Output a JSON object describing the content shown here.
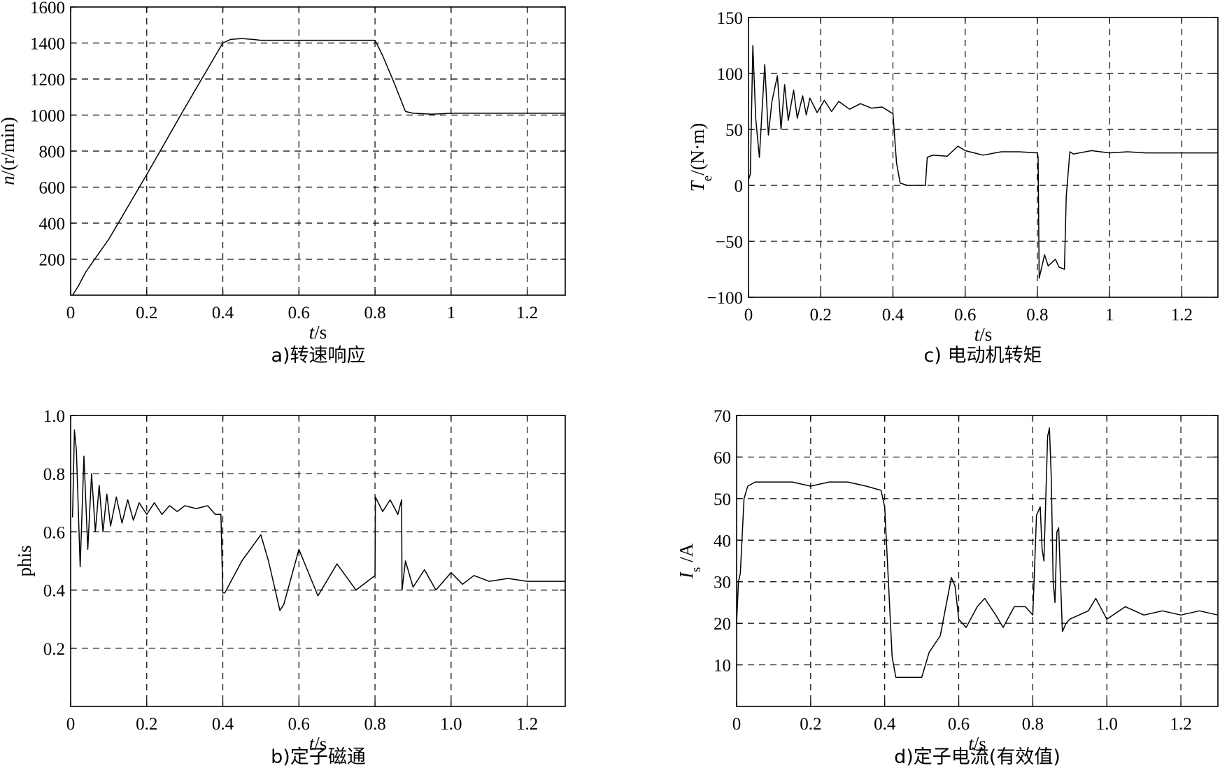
{
  "chart_data": [
    {
      "type": "line",
      "caption": "a)转速响应",
      "title": "",
      "xlabel": {
        "main": "t",
        "rest": "/s"
      },
      "ylabel": {
        "main": "n",
        "sub": "",
        "rest": "/(r/min)"
      },
      "xlim": [
        0,
        1.3
      ],
      "ylim": [
        0,
        1600
      ],
      "xticks": [
        0,
        0.2,
        0.4,
        0.6,
        0.8,
        1,
        1.2
      ],
      "xtick_labels": [
        "0",
        "0.2",
        "0.4",
        "0.6",
        "0.8",
        "1",
        "1.2"
      ],
      "yticks": [
        200,
        400,
        600,
        800,
        1000,
        1200,
        1400,
        1600
      ],
      "ytick_labels": [
        "200",
        "400",
        "600",
        "800",
        "1000",
        "1200",
        "1400",
        "1600"
      ],
      "grid": true,
      "series": [
        {
          "x": [
            0.005,
            0.02,
            0.04,
            0.06,
            0.1,
            0.2,
            0.3,
            0.4,
            0.42,
            0.45,
            0.48,
            0.5,
            0.6,
            0.7,
            0.8,
            0.82,
            0.85,
            0.88,
            0.9,
            0.95,
            1.0,
            1.05,
            1.1,
            1.2,
            1.3
          ],
          "y": [
            0,
            50,
            130,
            190,
            310,
            670,
            1040,
            1400,
            1420,
            1425,
            1420,
            1415,
            1415,
            1415,
            1415,
            1330,
            1180,
            1020,
            1010,
            1005,
            1010,
            1010,
            1010,
            1010,
            1010
          ]
        }
      ]
    },
    {
      "type": "line",
      "caption": "b)定子磁通",
      "title": "",
      "xlabel": {
        "main": "t",
        "rest": "/s"
      },
      "ylabel": {
        "main": "phis",
        "sub": "",
        "rest": ""
      },
      "xlim": [
        0,
        1.3
      ],
      "ylim": [
        0,
        1.0
      ],
      "xticks": [
        0,
        0.2,
        0.4,
        0.6,
        0.8,
        1.0,
        1.2
      ],
      "xtick_labels": [
        "0",
        "0.2",
        "0.4",
        "0.6",
        "0.8",
        "1.0",
        "1.2"
      ],
      "yticks": [
        0.2,
        0.4,
        0.6,
        0.8,
        1.0
      ],
      "ytick_labels": [
        "0.2",
        "0.4",
        "0.6",
        "0.8",
        "1.0"
      ],
      "grid": true,
      "series": [
        {
          "x": [
            0.005,
            0.01,
            0.015,
            0.025,
            0.035,
            0.045,
            0.055,
            0.065,
            0.075,
            0.085,
            0.095,
            0.105,
            0.12,
            0.135,
            0.15,
            0.165,
            0.18,
            0.2,
            0.22,
            0.24,
            0.26,
            0.28,
            0.3,
            0.33,
            0.36,
            0.38,
            0.395,
            0.4,
            0.405,
            0.45,
            0.5,
            0.52,
            0.55,
            0.56,
            0.6,
            0.65,
            0.7,
            0.75,
            0.8,
            0.801,
            0.82,
            0.84,
            0.86,
            0.87,
            0.871,
            0.88,
            0.9,
            0.93,
            0.96,
            1.0,
            1.03,
            1.06,
            1.1,
            1.15,
            1.2,
            1.25,
            1.3
          ],
          "y": [
            0.65,
            0.95,
            0.88,
            0.48,
            0.86,
            0.54,
            0.8,
            0.6,
            0.76,
            0.6,
            0.73,
            0.62,
            0.72,
            0.63,
            0.71,
            0.64,
            0.7,
            0.66,
            0.7,
            0.66,
            0.69,
            0.67,
            0.69,
            0.68,
            0.69,
            0.66,
            0.66,
            0.39,
            0.39,
            0.5,
            0.59,
            0.5,
            0.33,
            0.35,
            0.54,
            0.38,
            0.49,
            0.4,
            0.45,
            0.72,
            0.67,
            0.71,
            0.66,
            0.71,
            0.4,
            0.5,
            0.41,
            0.47,
            0.4,
            0.46,
            0.42,
            0.45,
            0.43,
            0.44,
            0.43,
            0.43,
            0.43
          ]
        }
      ]
    },
    {
      "type": "line",
      "caption": "c) 电动机转矩",
      "title": "",
      "xlabel": {
        "main": "t",
        "rest": "/s"
      },
      "ylabel": {
        "main": "T",
        "sub": "e",
        "rest": "/(N·m)"
      },
      "xlim": [
        0,
        1.3
      ],
      "ylim": [
        -100,
        150
      ],
      "xticks": [
        0,
        0.2,
        0.4,
        0.6,
        0.8,
        1,
        1.2
      ],
      "xtick_labels": [
        "0",
        "0.2",
        "0.4",
        "0.6",
        "0.8",
        "1",
        "1.2"
      ],
      "yticks": [
        -100,
        -50,
        0,
        50,
        100,
        150
      ],
      "ytick_labels": [
        "−100",
        "−50",
        "0",
        "50",
        "100",
        "150"
      ],
      "grid": true,
      "series": [
        {
          "x": [
            0.0,
            0.005,
            0.012,
            0.02,
            0.03,
            0.045,
            0.055,
            0.065,
            0.08,
            0.09,
            0.1,
            0.11,
            0.125,
            0.135,
            0.15,
            0.16,
            0.17,
            0.19,
            0.21,
            0.23,
            0.25,
            0.28,
            0.31,
            0.34,
            0.37,
            0.4,
            0.41,
            0.42,
            0.44,
            0.47,
            0.49,
            0.495,
            0.51,
            0.55,
            0.58,
            0.6,
            0.65,
            0.7,
            0.75,
            0.8,
            0.802,
            0.805,
            0.82,
            0.83,
            0.85,
            0.86,
            0.875,
            0.88,
            0.89,
            0.9,
            0.95,
            1.0,
            1.05,
            1.1,
            1.2,
            1.3
          ],
          "y": [
            5,
            10,
            125,
            60,
            25,
            108,
            45,
            75,
            98,
            50,
            90,
            58,
            85,
            60,
            80,
            63,
            78,
            65,
            76,
            66,
            75,
            68,
            73,
            69,
            70,
            64,
            20,
            2,
            0,
            0,
            0,
            25,
            27,
            26,
            35,
            31,
            27,
            30,
            30,
            29,
            25,
            -83,
            -62,
            -72,
            -66,
            -73,
            -75,
            -10,
            30,
            28,
            31,
            29,
            30,
            29,
            29,
            29
          ]
        }
      ]
    },
    {
      "type": "line",
      "caption": "d)定子电流(有效值)",
      "title": "",
      "xlabel": {
        "main": "t",
        "rest": "/s"
      },
      "ylabel": {
        "main": "I",
        "sub": "s",
        "rest": " /A"
      },
      "xlim": [
        0,
        1.3
      ],
      "ylim": [
        0,
        70
      ],
      "xticks": [
        0,
        0.2,
        0.4,
        0.6,
        0.8,
        1.0,
        1.2
      ],
      "xtick_labels": [
        "0",
        "0.2",
        "0.4",
        "0.6",
        "0.8",
        "1.0",
        "1.2"
      ],
      "yticks": [
        10,
        20,
        30,
        40,
        50,
        60,
        70
      ],
      "ytick_labels": [
        "10",
        "20",
        "30",
        "40",
        "50",
        "60",
        "70"
      ],
      "grid": true,
      "series": [
        {
          "x": [
            0.0,
            0.005,
            0.01,
            0.02,
            0.03,
            0.05,
            0.1,
            0.15,
            0.2,
            0.25,
            0.3,
            0.35,
            0.39,
            0.4,
            0.41,
            0.42,
            0.43,
            0.45,
            0.48,
            0.5,
            0.52,
            0.55,
            0.58,
            0.59,
            0.6,
            0.62,
            0.65,
            0.67,
            0.7,
            0.72,
            0.75,
            0.78,
            0.8,
            0.81,
            0.82,
            0.825,
            0.83,
            0.84,
            0.845,
            0.85,
            0.855,
            0.86,
            0.865,
            0.87,
            0.875,
            0.88,
            0.89,
            0.9,
            0.95,
            0.97,
            1.0,
            1.05,
            1.1,
            1.15,
            1.2,
            1.25,
            1.3
          ],
          "y": [
            20,
            30,
            32,
            50,
            53,
            54,
            54,
            54,
            53,
            54,
            54,
            53,
            52,
            48,
            30,
            12,
            7,
            7,
            7,
            7,
            13,
            17,
            31,
            29,
            21,
            19,
            24,
            26,
            22,
            19,
            24,
            24,
            22,
            46,
            48,
            38,
            35,
            65,
            67,
            55,
            30,
            25,
            42,
            43,
            30,
            18,
            20,
            21,
            23,
            26,
            21,
            24,
            22,
            23,
            22,
            23,
            22
          ]
        }
      ]
    }
  ]
}
